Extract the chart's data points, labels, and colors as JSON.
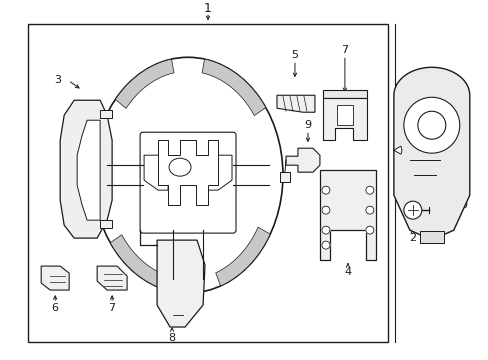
{
  "bg_color": "#ffffff",
  "line_color": "#1a1a1a",
  "fill_light": "#f0f0f0",
  "fill_gray": "#d8d8d8",
  "fill_white": "#ffffff"
}
